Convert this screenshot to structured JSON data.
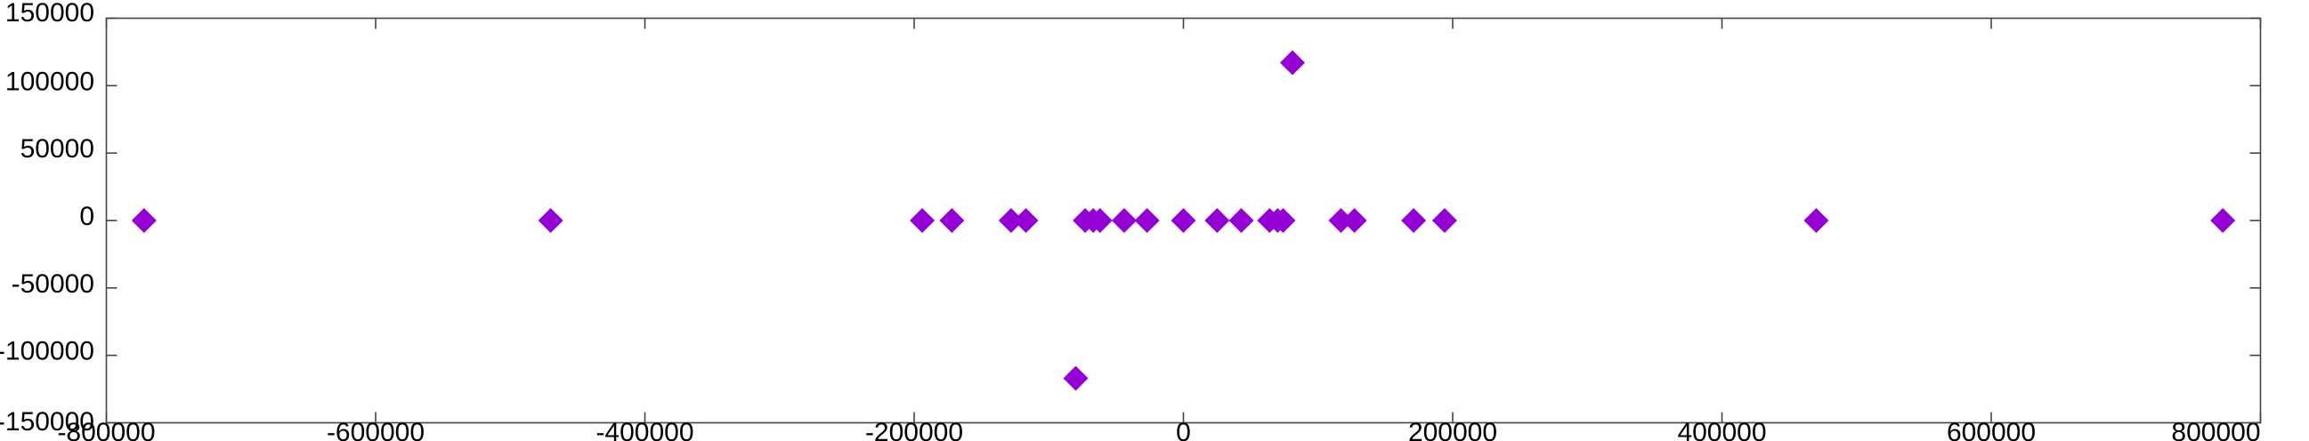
{
  "chart_data": {
    "type": "scatter",
    "title": "",
    "xlabel": "",
    "ylabel": "",
    "xlim": [
      -800000,
      800000
    ],
    "ylim": [
      -150000,
      150000
    ],
    "x_ticks": [
      "-800000",
      "-600000",
      "-400000",
      "-200000",
      "0",
      "200000",
      "400000",
      "600000",
      "800000"
    ],
    "y_ticks": [
      "150000",
      "100000",
      "50000",
      "0",
      "-50000",
      "-100000",
      "-150000"
    ],
    "grid": false,
    "legend": "none",
    "marker": "diamond",
    "color": "#9400D3",
    "series": [
      {
        "points": [
          {
            "x": -772000,
            "y": 0
          },
          {
            "x": -470000,
            "y": 0
          },
          {
            "x": -194000,
            "y": 0
          },
          {
            "x": -172000,
            "y": 0
          },
          {
            "x": -128000,
            "y": 0
          },
          {
            "x": -117000,
            "y": 0
          },
          {
            "x": -80000,
            "y": -117000
          },
          {
            "x": -73000,
            "y": 0
          },
          {
            "x": -67000,
            "y": 0
          },
          {
            "x": -62000,
            "y": 0
          },
          {
            "x": -44000,
            "y": 0
          },
          {
            "x": -27000,
            "y": 0
          },
          {
            "x": 0,
            "y": 0
          },
          {
            "x": 25000,
            "y": 0
          },
          {
            "x": 43000,
            "y": 0
          },
          {
            "x": 64000,
            "y": 0
          },
          {
            "x": 70000,
            "y": 0
          },
          {
            "x": 74000,
            "y": 0
          },
          {
            "x": 81000,
            "y": 117000
          },
          {
            "x": 117000,
            "y": 0
          },
          {
            "x": 127000,
            "y": 0
          },
          {
            "x": 171000,
            "y": 0
          },
          {
            "x": 194000,
            "y": 0
          },
          {
            "x": 470000,
            "y": 0
          },
          {
            "x": 772000,
            "y": 0
          }
        ]
      }
    ]
  }
}
